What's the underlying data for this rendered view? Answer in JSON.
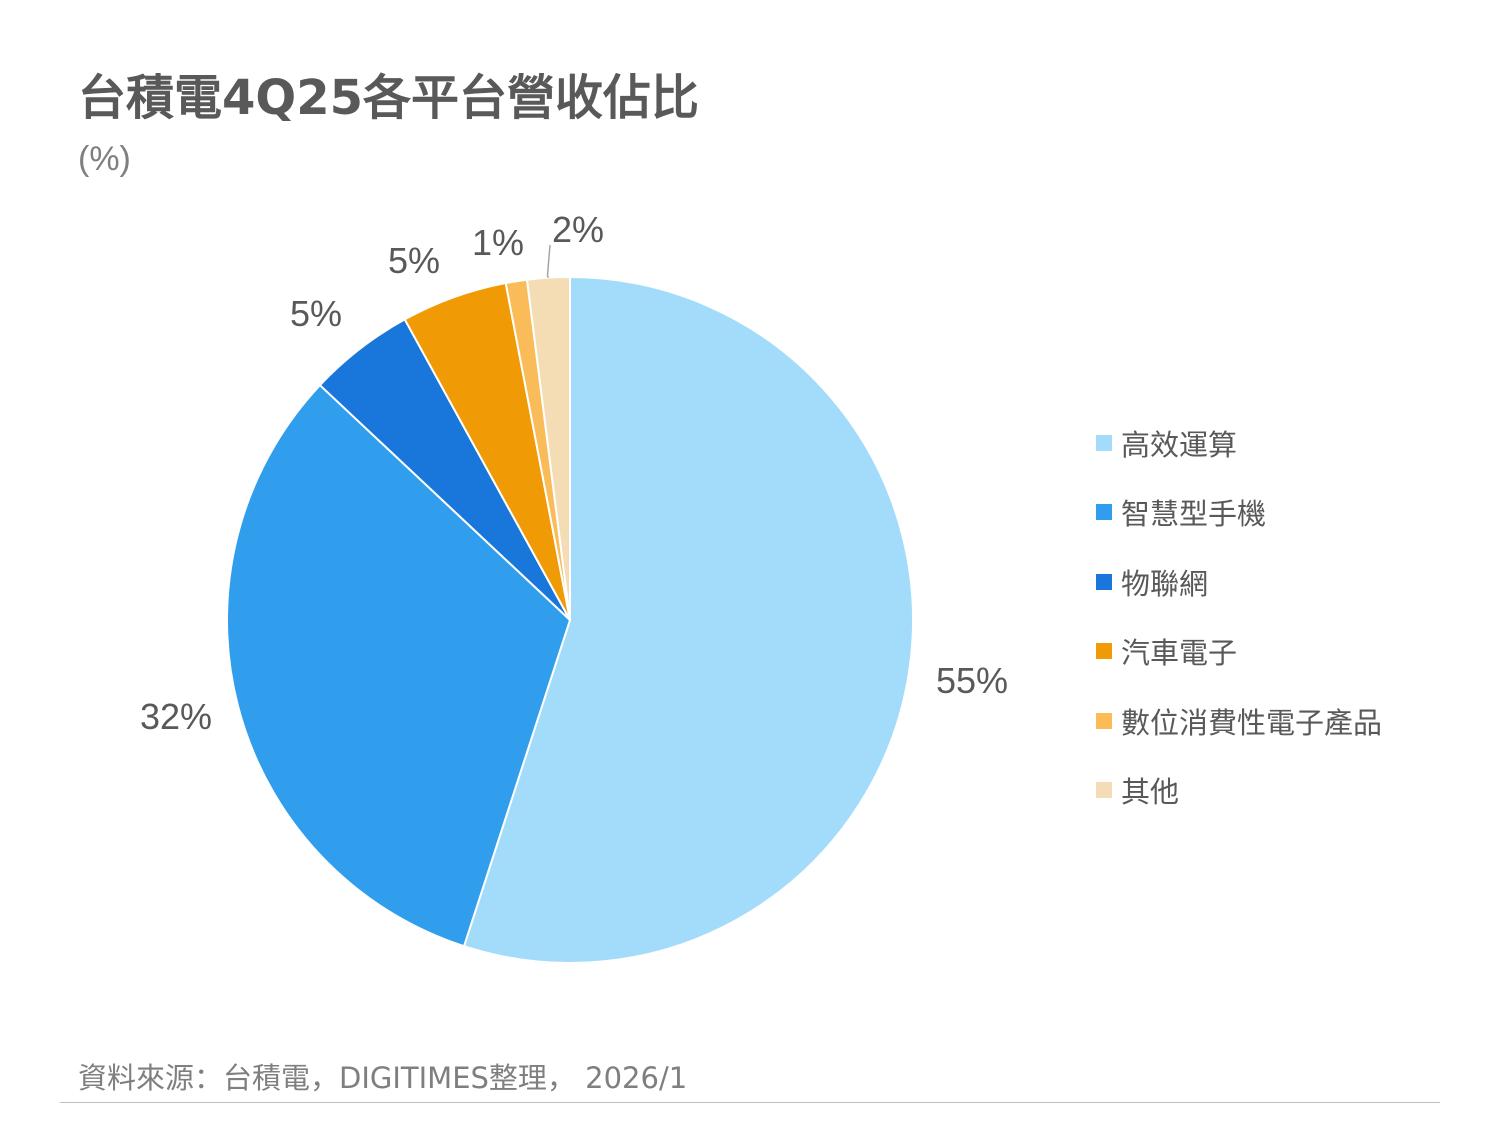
{
  "chart_data": {
    "type": "pie",
    "title": "台積電4Q25各平台營收佔比",
    "unit": "(%)",
    "categories": [
      "高效運算",
      "智慧型手機",
      "物聯網",
      "汽車電子",
      "數位消費性電子產品",
      "其他"
    ],
    "values": [
      55,
      32,
      5,
      5,
      1,
      2
    ],
    "data_labels": [
      "55%",
      "32%",
      "5%",
      "5%",
      "1%",
      "2%"
    ],
    "colors": [
      "#A3DBFA",
      "#319EED",
      "#1976DA",
      "#F09A05",
      "#F9BC58",
      "#F4DDB5"
    ],
    "start_angle": "12 o'clock",
    "direction": "clockwise",
    "legend_position": "right"
  },
  "footer": {
    "source": "資料來源：台積電，DIGITIMES整理， 2026/1"
  }
}
